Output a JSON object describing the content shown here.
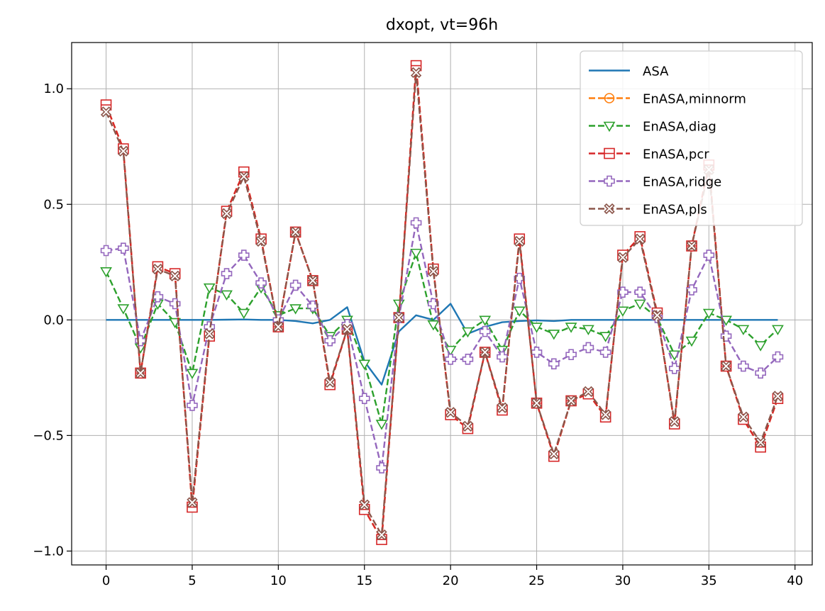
{
  "chart_data": {
    "type": "line",
    "title": "dxopt, vt=96h",
    "xlabel": "",
    "ylabel": "",
    "xlim": [
      -2,
      41
    ],
    "ylim": [
      -1.06,
      1.2
    ],
    "xticks": [
      0,
      5,
      10,
      15,
      20,
      25,
      30,
      35,
      40
    ],
    "xtick_labels": [
      "0",
      "5",
      "10",
      "15",
      "20",
      "25",
      "30",
      "35",
      "40"
    ],
    "yticks": [
      -1.0,
      -0.5,
      0.0,
      0.5,
      1.0
    ],
    "ytick_labels": [
      "−1.0",
      "−0.5",
      "0.0",
      "0.5",
      "1.0"
    ],
    "grid": true,
    "legend_position": "top-right",
    "x": [
      0,
      1,
      2,
      3,
      4,
      5,
      6,
      7,
      8,
      9,
      10,
      11,
      12,
      13,
      14,
      15,
      16,
      17,
      18,
      19,
      20,
      21,
      22,
      23,
      24,
      25,
      26,
      27,
      28,
      29,
      30,
      31,
      32,
      33,
      34,
      35,
      36,
      37,
      38,
      39
    ],
    "series": [
      {
        "name": "ASA",
        "color": "#1f77b4",
        "linestyle": "solid",
        "marker": "none",
        "values": [
          0,
          0,
          0,
          0,
          0,
          0,
          0,
          0.001,
          0.002,
          0,
          0,
          -0.005,
          -0.015,
          0,
          0.055,
          -0.18,
          -0.28,
          -0.05,
          0.02,
          0,
          0.07,
          -0.06,
          -0.03,
          -0.01,
          -0.005,
          -0.002,
          -0.005,
          0,
          0,
          0,
          0,
          0,
          0,
          0,
          0,
          0,
          0,
          0,
          0,
          0
        ]
      },
      {
        "name": "EnASA,minnorm",
        "color": "#ff7f0e",
        "linestyle": "dashed",
        "marker": "circle-minus",
        "values": [
          0.93,
          0.74,
          -0.23,
          0.23,
          0.2,
          -0.81,
          -0.07,
          0.47,
          0.64,
          0.35,
          -0.03,
          0.38,
          0.17,
          -0.28,
          -0.04,
          -0.82,
          -0.95,
          0.01,
          1.1,
          0.22,
          -0.41,
          -0.47,
          -0.14,
          -0.39,
          0.35,
          -0.36,
          -0.59,
          -0.35,
          -0.32,
          -0.42,
          0.28,
          0.36,
          0.03,
          -0.45,
          0.32,
          0.67,
          -0.2,
          -0.43,
          -0.55,
          -0.34
        ]
      },
      {
        "name": "EnASA,diag",
        "color": "#2ca02c",
        "linestyle": "dashed",
        "marker": "triangle-down",
        "values": [
          0.21,
          0.05,
          -0.12,
          0.07,
          -0.01,
          -0.23,
          0.14,
          0.11,
          0.03,
          0.14,
          0.02,
          0.05,
          0.05,
          -0.07,
          0,
          -0.19,
          -0.45,
          0.07,
          0.29,
          -0.02,
          -0.13,
          -0.05,
          0,
          -0.13,
          0.04,
          -0.03,
          -0.06,
          -0.03,
          -0.04,
          -0.07,
          0.04,
          0.07,
          0.01,
          -0.15,
          -0.09,
          0.03,
          0,
          -0.04,
          -0.11,
          -0.04
        ]
      },
      {
        "name": "EnASA,pcr",
        "color": "#d62728",
        "linestyle": "dashed",
        "marker": "square-minus",
        "values": [
          0.93,
          0.74,
          -0.23,
          0.23,
          0.2,
          -0.81,
          -0.07,
          0.47,
          0.64,
          0.35,
          -0.03,
          0.38,
          0.17,
          -0.28,
          -0.04,
          -0.82,
          -0.95,
          0.01,
          1.1,
          0.22,
          -0.41,
          -0.47,
          -0.14,
          -0.39,
          0.35,
          -0.36,
          -0.59,
          -0.35,
          -0.32,
          -0.42,
          0.28,
          0.36,
          0.03,
          -0.45,
          0.32,
          0.67,
          -0.2,
          -0.43,
          -0.55,
          -0.34
        ]
      },
      {
        "name": "EnASA,ridge",
        "color": "#9467bd",
        "linestyle": "dashed",
        "marker": "plus-filled",
        "values": [
          0.3,
          0.31,
          -0.09,
          0.1,
          0.07,
          -0.37,
          -0.03,
          0.2,
          0.28,
          0.16,
          0,
          0.15,
          0.06,
          -0.09,
          -0.02,
          -0.34,
          -0.64,
          0.01,
          0.42,
          0.07,
          -0.17,
          -0.17,
          -0.05,
          -0.16,
          0.18,
          -0.14,
          -0.19,
          -0.15,
          -0.12,
          -0.14,
          0.12,
          0.12,
          0.01,
          -0.21,
          0.13,
          0.28,
          -0.07,
          -0.2,
          -0.23,
          -0.16
        ]
      },
      {
        "name": "EnASA,pls",
        "color": "#8c564b",
        "linestyle": "dashed",
        "marker": "x-filled",
        "values": [
          0.9,
          0.73,
          -0.23,
          0.22,
          0.19,
          -0.79,
          -0.06,
          0.46,
          0.62,
          0.34,
          -0.03,
          0.38,
          0.17,
          -0.27,
          -0.04,
          -0.8,
          -0.93,
          0.01,
          1.07,
          0.21,
          -0.4,
          -0.46,
          -0.14,
          -0.38,
          0.34,
          -0.36,
          -0.58,
          -0.35,
          -0.31,
          -0.41,
          0.27,
          0.35,
          0.02,
          -0.44,
          0.32,
          0.65,
          -0.2,
          -0.42,
          -0.53,
          -0.33
        ]
      }
    ]
  }
}
